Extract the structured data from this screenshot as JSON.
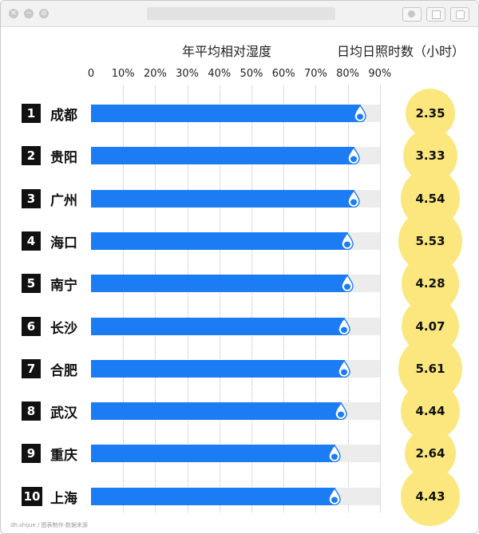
{
  "window": {
    "controls": [
      "close-icon",
      "minimize-icon",
      "no-entry-icon"
    ],
    "toolbar_icons": [
      "record-icon",
      "clipboard-icon",
      "camera-icon"
    ]
  },
  "chart_data": {
    "type": "bar",
    "orientation": "horizontal",
    "humidity_header": "年平均相对湿度",
    "sunshine_header": "日均日照时数（小时）",
    "x_ticks": [
      "0",
      "10%",
      "20%",
      "30%",
      "40%",
      "50%",
      "60%",
      "70%",
      "80%",
      "90%"
    ],
    "xlim": [
      0,
      90
    ],
    "grid": true,
    "colors": {
      "bar": "#1c7cf4",
      "track": "#ececec",
      "bubble": "#fce77e"
    },
    "categories": [
      "成都",
      "贵阳",
      "广州",
      "海口",
      "南宁",
      "长沙",
      "合肥",
      "武汉",
      "重庆",
      "上海"
    ],
    "ranks": [
      "1",
      "2",
      "3",
      "4",
      "5",
      "6",
      "7",
      "8",
      "9",
      "10"
    ],
    "humidity": [
      84,
      82,
      82,
      80,
      80,
      79,
      79,
      78,
      76,
      76
    ],
    "sunshine": [
      "2.35",
      "3.33",
      "4.54",
      "5.53",
      "4.28",
      "4.07",
      "5.61",
      "4.44",
      "2.64",
      "4.43"
    ]
  },
  "watermark": "dh.shijue / 图表制作·数据来源"
}
